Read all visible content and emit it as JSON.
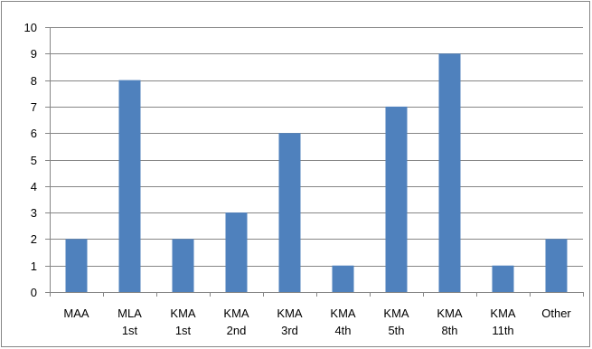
{
  "chart_data": {
    "type": "bar",
    "categories": [
      [
        "MAA"
      ],
      [
        "MLA",
        "1st"
      ],
      [
        "KMA",
        "1st"
      ],
      [
        "KMA",
        "2nd"
      ],
      [
        "KMA",
        "3rd"
      ],
      [
        "KMA",
        "4th"
      ],
      [
        "KMA",
        "5th"
      ],
      [
        "KMA",
        "8th"
      ],
      [
        "KMA",
        "11th"
      ],
      [
        "Other"
      ]
    ],
    "values": [
      2,
      8,
      2,
      3,
      6,
      1,
      7,
      9,
      1,
      2
    ],
    "ylim": [
      0,
      10
    ],
    "yticks": [
      "0",
      "1",
      "2",
      "3",
      "4",
      "5",
      "6",
      "7",
      "8",
      "9",
      "10"
    ],
    "grid": true,
    "legend": "none",
    "title": "",
    "xlabel": "",
    "ylabel": "",
    "colors": {
      "bar": "#4F81BD",
      "grid": "#868686",
      "axis": "#868686"
    }
  }
}
